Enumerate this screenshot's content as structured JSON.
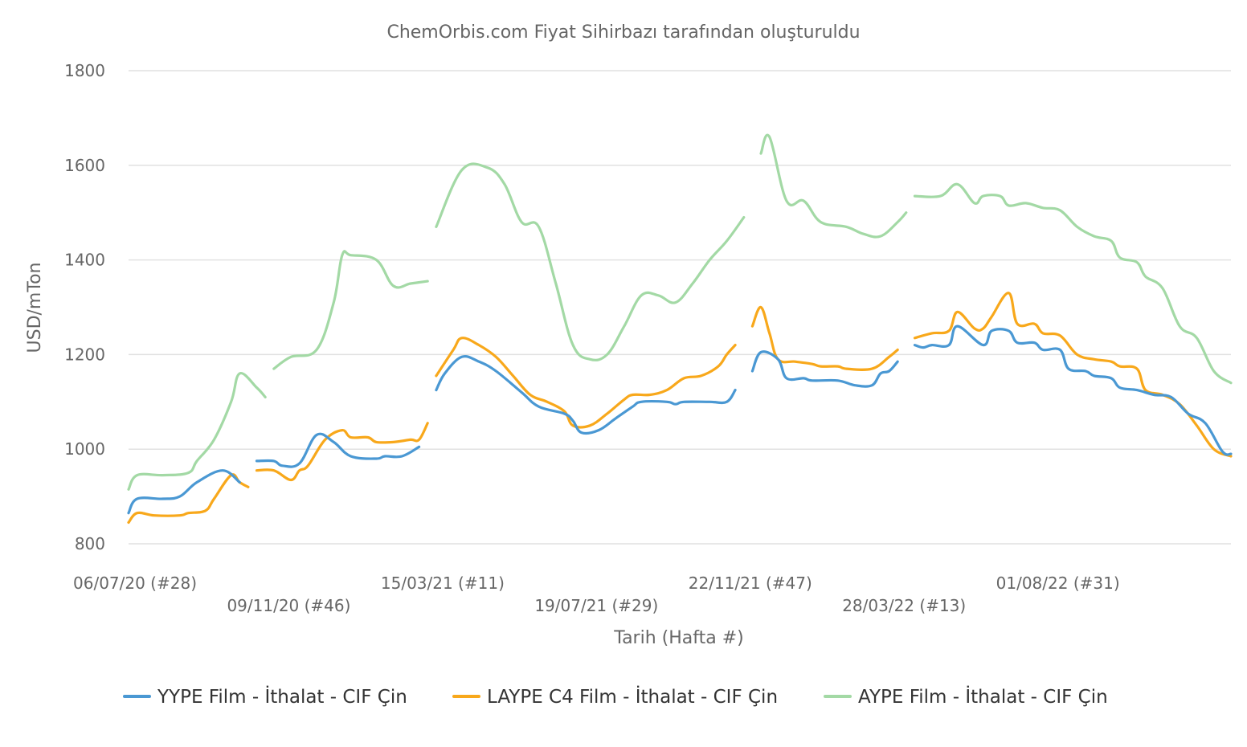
{
  "chart_data": {
    "type": "line",
    "title": "ChemOrbis.com Fiyat Sihirbazı tarafından oluşturuldu",
    "xlabel": "Tarih (Hafta #)",
    "ylabel": "USD/mTon",
    "ylim": [
      800,
      1800
    ],
    "yticks": [
      "800",
      "1000",
      "1200",
      "1400",
      "1600",
      "1800"
    ],
    "grid": true,
    "legend_position": "bottom",
    "x_start": "2020-07-06",
    "x_end": "2022-12-26",
    "x_tick_labels": [
      {
        "date": "2020-07-06",
        "label": "06/07/20 (#28)",
        "row": 0
      },
      {
        "date": "2020-11-09",
        "label": "09/11/20 (#46)",
        "row": 1
      },
      {
        "date": "2021-03-15",
        "label": "15/03/21 (#11)",
        "row": 0
      },
      {
        "date": "2021-07-19",
        "label": "19/07/21 (#29)",
        "row": 1
      },
      {
        "date": "2021-11-22",
        "label": "22/11/21 (#47)",
        "row": 0
      },
      {
        "date": "2022-03-28",
        "label": "28/03/22 (#13)",
        "row": 1
      },
      {
        "date": "2022-08-01",
        "label": "01/08/22 (#31)",
        "row": 0
      }
    ],
    "series": [
      {
        "name": "YYPE Film - İthalat - CIF Çin",
        "color": "#4a98d3",
        "segments": [
          [
            [
              "2020-07-06",
              865
            ],
            [
              "2020-07-13",
              895
            ],
            [
              "2020-08-03",
              895
            ],
            [
              "2020-08-17",
              900
            ],
            [
              "2020-08-31",
              930
            ],
            [
              "2020-09-21",
              955
            ],
            [
              "2020-10-05",
              930
            ]
          ],
          [
            [
              "2020-10-19",
              975
            ],
            [
              "2020-11-02",
              975
            ],
            [
              "2020-11-09",
              965
            ],
            [
              "2020-11-23",
              970
            ],
            [
              "2020-12-07",
              1030
            ],
            [
              "2020-12-21",
              1015
            ],
            [
              "2021-01-04",
              985
            ],
            [
              "2021-01-25",
              980
            ],
            [
              "2021-02-01",
              985
            ],
            [
              "2021-02-15",
              985
            ],
            [
              "2021-03-01",
              1005
            ]
          ],
          [
            [
              "2021-03-15",
              1125
            ],
            [
              "2021-03-22",
              1160
            ],
            [
              "2021-04-05",
              1195
            ],
            [
              "2021-04-19",
              1185
            ],
            [
              "2021-05-03",
              1165
            ],
            [
              "2021-05-24",
              1120
            ],
            [
              "2021-06-07",
              1090
            ],
            [
              "2021-06-28",
              1075
            ],
            [
              "2021-07-05",
              1060
            ],
            [
              "2021-07-12",
              1035
            ],
            [
              "2021-07-26",
              1040
            ],
            [
              "2021-08-09",
              1065
            ],
            [
              "2021-08-23",
              1090
            ],
            [
              "2021-08-30",
              1100
            ],
            [
              "2021-09-20",
              1100
            ],
            [
              "2021-09-27",
              1095
            ],
            [
              "2021-10-04",
              1100
            ],
            [
              "2021-10-25",
              1100
            ],
            [
              "2021-11-08",
              1100
            ],
            [
              "2021-11-15",
              1125
            ]
          ],
          [
            [
              "2021-11-29",
              1165
            ],
            [
              "2021-12-06",
              1205
            ],
            [
              "2021-12-20",
              1190
            ],
            [
              "2021-12-27",
              1150
            ],
            [
              "2022-01-10",
              1150
            ],
            [
              "2022-01-17",
              1145
            ],
            [
              "2022-02-07",
              1145
            ],
            [
              "2022-02-21",
              1135
            ],
            [
              "2022-03-07",
              1135
            ],
            [
              "2022-03-14",
              1160
            ],
            [
              "2022-03-21",
              1165
            ],
            [
              "2022-03-28",
              1185
            ]
          ],
          [
            [
              "2022-04-11",
              1220
            ],
            [
              "2022-04-18",
              1215
            ],
            [
              "2022-04-25",
              1220
            ],
            [
              "2022-05-09",
              1220
            ],
            [
              "2022-05-16",
              1260
            ],
            [
              "2022-06-06",
              1220
            ],
            [
              "2022-06-13",
              1250
            ],
            [
              "2022-06-27",
              1250
            ],
            [
              "2022-07-04",
              1225
            ],
            [
              "2022-07-18",
              1225
            ],
            [
              "2022-07-25",
              1210
            ],
            [
              "2022-08-08",
              1210
            ],
            [
              "2022-08-15",
              1170
            ],
            [
              "2022-08-29",
              1165
            ],
            [
              "2022-09-05",
              1155
            ],
            [
              "2022-09-19",
              1150
            ],
            [
              "2022-09-26",
              1130
            ],
            [
              "2022-10-10",
              1125
            ],
            [
              "2022-10-24",
              1115
            ],
            [
              "2022-11-07",
              1110
            ],
            [
              "2022-11-21",
              1075
            ],
            [
              "2022-12-05",
              1055
            ],
            [
              "2022-12-19",
              995
            ],
            [
              "2022-12-26",
              990
            ]
          ]
        ]
      },
      {
        "name": "LAYPE C4 Film - İthalat - CIF Çin",
        "color": "#f8a81b",
        "segments": [
          [
            [
              "2020-07-06",
              845
            ],
            [
              "2020-07-13",
              865
            ],
            [
              "2020-07-27",
              860
            ],
            [
              "2020-08-17",
              860
            ],
            [
              "2020-08-24",
              865
            ],
            [
              "2020-09-07",
              870
            ],
            [
              "2020-09-14",
              895
            ],
            [
              "2020-09-28",
              945
            ],
            [
              "2020-10-05",
              930
            ],
            [
              "2020-10-12",
              920
            ]
          ],
          [
            [
              "2020-10-19",
              955
            ],
            [
              "2020-11-02",
              955
            ],
            [
              "2020-11-16",
              935
            ],
            [
              "2020-11-23",
              955
            ],
            [
              "2020-11-30",
              965
            ],
            [
              "2020-12-14",
              1020
            ],
            [
              "2020-12-28",
              1040
            ],
            [
              "2021-01-04",
              1025
            ],
            [
              "2021-01-18",
              1025
            ],
            [
              "2021-01-25",
              1015
            ],
            [
              "2021-02-08",
              1015
            ],
            [
              "2021-02-22",
              1020
            ],
            [
              "2021-03-01",
              1020
            ],
            [
              "2021-03-08",
              1055
            ]
          ],
          [
            [
              "2021-03-15",
              1155
            ],
            [
              "2021-03-29",
              1210
            ],
            [
              "2021-04-05",
              1235
            ],
            [
              "2021-04-19",
              1220
            ],
            [
              "2021-05-03",
              1195
            ],
            [
              "2021-05-17",
              1155
            ],
            [
              "2021-05-31",
              1115
            ],
            [
              "2021-06-14",
              1100
            ],
            [
              "2021-06-28",
              1080
            ],
            [
              "2021-07-05",
              1050
            ],
            [
              "2021-07-19",
              1050
            ],
            [
              "2021-08-02",
              1075
            ],
            [
              "2021-08-16",
              1105
            ],
            [
              "2021-08-23",
              1115
            ],
            [
              "2021-09-06",
              1115
            ],
            [
              "2021-09-20",
              1125
            ],
            [
              "2021-10-04",
              1150
            ],
            [
              "2021-10-18",
              1155
            ],
            [
              "2021-11-01",
              1175
            ],
            [
              "2021-11-08",
              1200
            ],
            [
              "2021-11-15",
              1220
            ]
          ],
          [
            [
              "2021-11-29",
              1260
            ],
            [
              "2021-12-06",
              1300
            ],
            [
              "2021-12-13",
              1245
            ],
            [
              "2021-12-20",
              1190
            ],
            [
              "2022-01-03",
              1185
            ],
            [
              "2022-01-17",
              1180
            ],
            [
              "2022-01-24",
              1175
            ],
            [
              "2022-02-07",
              1175
            ],
            [
              "2022-02-14",
              1170
            ],
            [
              "2022-03-07",
              1170
            ],
            [
              "2022-03-21",
              1195
            ],
            [
              "2022-03-28",
              1210
            ]
          ],
          [
            [
              "2022-04-11",
              1235
            ],
            [
              "2022-04-25",
              1245
            ],
            [
              "2022-05-09",
              1250
            ],
            [
              "2022-05-16",
              1290
            ],
            [
              "2022-05-30",
              1255
            ],
            [
              "2022-06-06",
              1255
            ],
            [
              "2022-06-13",
              1280
            ],
            [
              "2022-06-27",
              1330
            ],
            [
              "2022-07-04",
              1265
            ],
            [
              "2022-07-18",
              1265
            ],
            [
              "2022-07-25",
              1245
            ],
            [
              "2022-08-08",
              1240
            ],
            [
              "2022-08-22",
              1200
            ],
            [
              "2022-09-05",
              1190
            ],
            [
              "2022-09-19",
              1185
            ],
            [
              "2022-09-26",
              1175
            ],
            [
              "2022-10-10",
              1170
            ],
            [
              "2022-10-17",
              1125
            ],
            [
              "2022-10-31",
              1115
            ],
            [
              "2022-11-14",
              1095
            ],
            [
              "2022-11-28",
              1050
            ],
            [
              "2022-12-12",
              1000
            ],
            [
              "2022-12-26",
              985
            ]
          ]
        ]
      },
      {
        "name": "AYPE Film - İthalat - CIF Çin",
        "color": "#a3d9a5",
        "segments": [
          [
            [
              "2020-07-06",
              915
            ],
            [
              "2020-07-13",
              945
            ],
            [
              "2020-08-03",
              945
            ],
            [
              "2020-08-24",
              950
            ],
            [
              "2020-08-31",
              975
            ],
            [
              "2020-09-14",
              1020
            ],
            [
              "2020-09-28",
              1100
            ],
            [
              "2020-10-05",
              1160
            ],
            [
              "2020-10-19",
              1130
            ],
            [
              "2020-10-26",
              1110
            ]
          ],
          [
            [
              "2020-11-02",
              1170
            ],
            [
              "2020-11-16",
              1195
            ],
            [
              "2020-12-07",
              1210
            ],
            [
              "2020-12-21",
              1310
            ],
            [
              "2020-12-28",
              1410
            ],
            [
              "2021-01-04",
              1410
            ],
            [
              "2021-01-25",
              1400
            ],
            [
              "2021-02-08",
              1345
            ],
            [
              "2021-02-22",
              1350
            ],
            [
              "2021-03-08",
              1355
            ]
          ],
          [
            [
              "2021-03-15",
              1470
            ],
            [
              "2021-04-05",
              1590
            ],
            [
              "2021-04-26",
              1595
            ],
            [
              "2021-05-10",
              1560
            ],
            [
              "2021-05-24",
              1480
            ],
            [
              "2021-06-07",
              1470
            ],
            [
              "2021-06-21",
              1350
            ],
            [
              "2021-07-05",
              1220
            ],
            [
              "2021-07-19",
              1190
            ],
            [
              "2021-08-02",
              1200
            ],
            [
              "2021-08-16",
              1260
            ],
            [
              "2021-08-30",
              1325
            ],
            [
              "2021-09-13",
              1325
            ],
            [
              "2021-09-27",
              1310
            ],
            [
              "2021-10-11",
              1350
            ],
            [
              "2021-10-25",
              1400
            ],
            [
              "2021-11-08",
              1440
            ],
            [
              "2021-11-22",
              1490
            ]
          ],
          [
            [
              "2021-12-06",
              1625
            ],
            [
              "2021-12-13",
              1660
            ],
            [
              "2021-12-27",
              1525
            ],
            [
              "2022-01-10",
              1525
            ],
            [
              "2022-01-24",
              1480
            ],
            [
              "2022-02-14",
              1470
            ],
            [
              "2022-02-28",
              1455
            ],
            [
              "2022-03-14",
              1450
            ],
            [
              "2022-03-28",
              1480
            ],
            [
              "2022-04-04",
              1500
            ]
          ],
          [
            [
              "2022-04-11",
              1535
            ],
            [
              "2022-05-02",
              1535
            ],
            [
              "2022-05-16",
              1560
            ],
            [
              "2022-05-30",
              1520
            ],
            [
              "2022-06-06",
              1535
            ],
            [
              "2022-06-20",
              1535
            ],
            [
              "2022-06-27",
              1515
            ],
            [
              "2022-07-11",
              1520
            ],
            [
              "2022-07-25",
              1510
            ],
            [
              "2022-08-08",
              1505
            ],
            [
              "2022-08-22",
              1470
            ],
            [
              "2022-09-05",
              1450
            ],
            [
              "2022-09-19",
              1440
            ],
            [
              "2022-09-26",
              1405
            ],
            [
              "2022-10-10",
              1395
            ],
            [
              "2022-10-17",
              1365
            ],
            [
              "2022-10-31",
              1340
            ],
            [
              "2022-11-14",
              1260
            ],
            [
              "2022-11-28",
              1235
            ],
            [
              "2022-12-12",
              1165
            ],
            [
              "2022-12-26",
              1140
            ]
          ]
        ]
      }
    ]
  }
}
